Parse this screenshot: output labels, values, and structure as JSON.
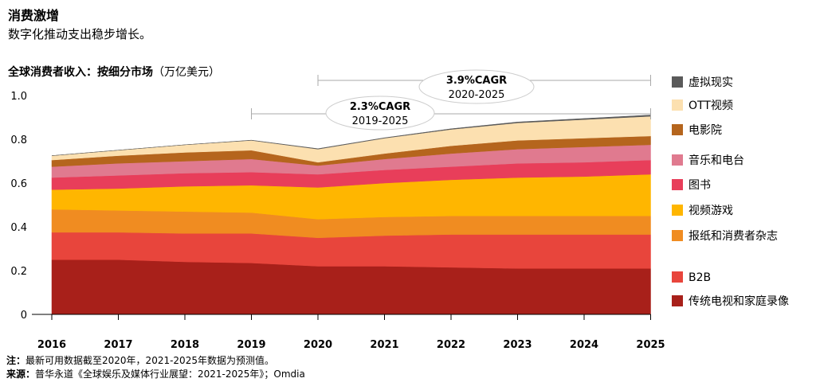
{
  "header": {
    "title": "消费激增",
    "subtitle": "数字化推动支出稳步增长。"
  },
  "chart_data": {
    "type": "area",
    "stacked": true,
    "title": "全球消费者收入：按细分市场",
    "unit": "（万亿美元）",
    "xlabel": "",
    "ylabel": "",
    "x": [
      "2016",
      "2017",
      "2018",
      "2019",
      "2020",
      "2021",
      "2022",
      "2023",
      "2024",
      "2025"
    ],
    "ylim": [
      0,
      1.0
    ],
    "yticks": [
      "0",
      "0.2",
      "0.4",
      "0.6",
      "0.8",
      "1.0"
    ],
    "grid": false,
    "legend_position": "right",
    "series": [
      {
        "name": "传统电视和家庭录像",
        "color": "#a8201a",
        "values": [
          0.25,
          0.25,
          0.24,
          0.235,
          0.22,
          0.22,
          0.215,
          0.21,
          0.21,
          0.21
        ]
      },
      {
        "name": "B2B",
        "color": "#e8453c",
        "values": [
          0.125,
          0.125,
          0.13,
          0.135,
          0.13,
          0.14,
          0.15,
          0.155,
          0.155,
          0.155
        ]
      },
      {
        "name": "报纸和消费者杂志",
        "color": "#f08c21",
        "values": [
          0.105,
          0.1,
          0.1,
          0.095,
          0.085,
          0.085,
          0.085,
          0.085,
          0.085,
          0.085
        ]
      },
      {
        "name": "视频游戏",
        "color": "#ffb600",
        "values": [
          0.09,
          0.1,
          0.115,
          0.125,
          0.145,
          0.155,
          0.165,
          0.175,
          0.18,
          0.19
        ]
      },
      {
        "name": "图书",
        "color": "#e83e5a",
        "values": [
          0.055,
          0.06,
          0.06,
          0.06,
          0.06,
          0.06,
          0.06,
          0.065,
          0.065,
          0.065
        ]
      },
      {
        "name": "音乐和电台",
        "color": "#e07a8f",
        "values": [
          0.05,
          0.055,
          0.055,
          0.06,
          0.04,
          0.05,
          0.06,
          0.065,
          0.07,
          0.07
        ]
      },
      {
        "name": "电影院",
        "color": "#b5651d",
        "values": [
          0.03,
          0.035,
          0.04,
          0.04,
          0.015,
          0.025,
          0.035,
          0.04,
          0.04,
          0.04
        ]
      },
      {
        "name": "OTT视频",
        "color": "#fce0b0",
        "values": [
          0.02,
          0.025,
          0.035,
          0.045,
          0.06,
          0.07,
          0.075,
          0.08,
          0.085,
          0.09
        ]
      },
      {
        "name": "虚拟现实",
        "color": "#5a5a5a",
        "values": [
          0.0,
          0.0,
          0.0,
          0.001,
          0.002,
          0.002,
          0.003,
          0.004,
          0.005,
          0.006
        ]
      }
    ],
    "annotations": [
      {
        "label": "2.3%CAGR",
        "period": "2019-2025",
        "from": "2019",
        "to": "2025"
      },
      {
        "label": "3.9%CAGR",
        "period": "2020-2025",
        "from": "2020",
        "to": "2025"
      }
    ]
  },
  "footnotes": {
    "note_label": "注：",
    "note_text": "最新可用数据截至2020年，2021-2025年数据为预测值。",
    "source_label": "来源：",
    "source_text": "普华永道《全球娱乐及媒体行业展望：2021-2025年》；Omdia"
  }
}
